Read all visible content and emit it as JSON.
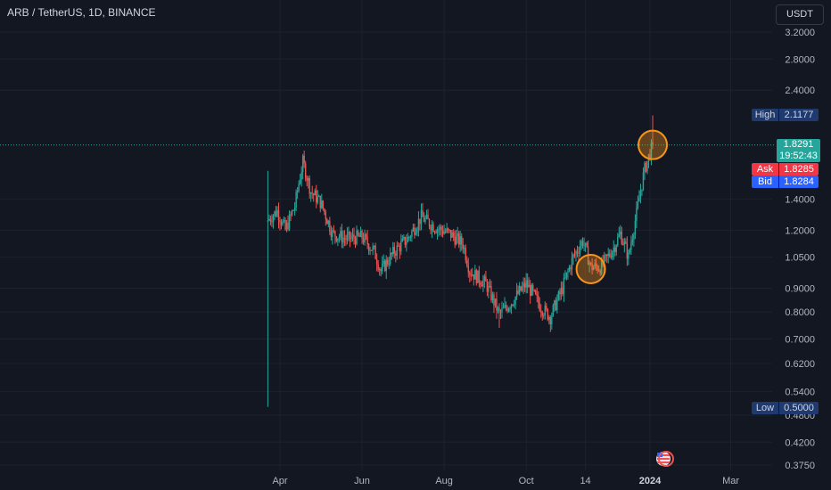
{
  "header": {
    "symbol_title": "ARB / TetherUS, 1D, BINANCE",
    "currency": "USDT"
  },
  "price_labels": {
    "high": {
      "label": "High",
      "value": "2.1177"
    },
    "low": {
      "label": "Low",
      "value": "0.5000"
    },
    "ask": {
      "label": "Ask",
      "value": "1.8285"
    },
    "bid": {
      "label": "Bid",
      "value": "1.8284"
    },
    "last": {
      "value": "1.8291",
      "countdown": "19:52:43"
    }
  },
  "colors": {
    "up": "#26a69a",
    "down": "#ef5350",
    "background": "#131722",
    "grid": "#1e222d",
    "marker": "#f7931a",
    "high_low_label": "#1e3a6e",
    "ask": "#f23645",
    "bid": "#2962ff"
  },
  "chart_data": {
    "type": "candlestick",
    "y_scale": "log",
    "ylim": [
      0.37,
      3.45
    ],
    "y_ticks": [
      "3.2000",
      "2.8000",
      "2.4000",
      "1.4000",
      "1.2000",
      "1.0500",
      "0.9000",
      "0.8000",
      "0.7000",
      "0.6200",
      "0.5400",
      "0.4800",
      "0.4200",
      "0.3750"
    ],
    "x_ticks": [
      "Apr",
      "Jun",
      "Aug",
      "Oct",
      "14",
      "2024",
      "Mar"
    ],
    "grid": true,
    "icons": [
      "us-flag-icon",
      "event-icon"
    ],
    "markers": [
      {
        "label": "circle-1",
        "date_approx": "2023-11-18",
        "price_approx": 0.99
      },
      {
        "label": "circle-2",
        "date_approx": "2024-01-03",
        "price_approx": 1.83
      }
    ],
    "key_points": [
      {
        "date_approx": "2023-03-23",
        "open": 1.25,
        "high": 1.61,
        "low": 0.5,
        "close": 1.26
      },
      {
        "date_approx": "2023-04-18",
        "high": 1.75
      },
      {
        "date_approx": "2023-09-11",
        "low": 0.74
      },
      {
        "date_approx": "2023-10-19",
        "low": 0.76
      },
      {
        "date_approx": "2024-01-03",
        "high": 2.1177,
        "close": 1.8291
      }
    ]
  }
}
